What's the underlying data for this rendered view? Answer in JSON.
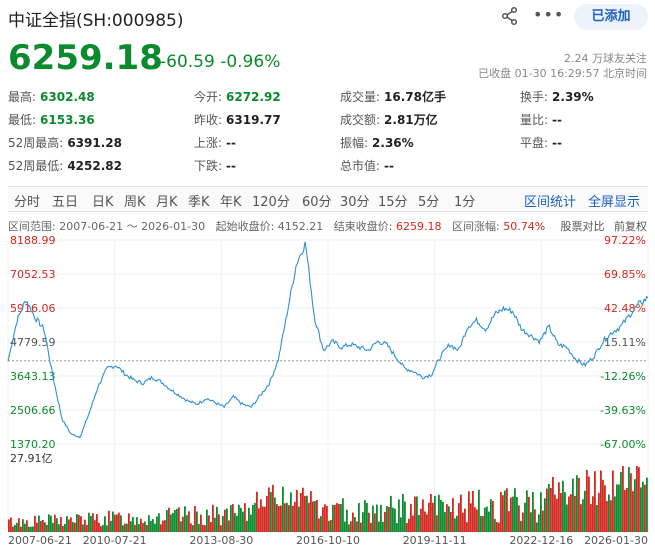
{
  "header": {
    "title": "中证全指(SH:000985)",
    "added_label": "已添加",
    "followers": "2.24 万球友关注",
    "closed_time": "已收盘 01-30 16:29:57 北京时间"
  },
  "quote": {
    "price": "6259.18",
    "change": "-60.59 -0.96%"
  },
  "stats": [
    {
      "label": "最高:",
      "value": "6302.48",
      "color": "green"
    },
    {
      "label": "今开:",
      "value": "6272.92",
      "color": "green"
    },
    {
      "label": "成交量:",
      "value": "16.78亿手",
      "color": ""
    },
    {
      "label": "换手:",
      "value": "2.39%",
      "color": ""
    },
    {
      "label": "最低:",
      "value": "6153.36",
      "color": "green"
    },
    {
      "label": "昨收:",
      "value": "6319.77",
      "color": ""
    },
    {
      "label": "成交额:",
      "value": "2.81万亿",
      "color": ""
    },
    {
      "label": "量比:",
      "value": "--",
      "color": ""
    },
    {
      "label": "52周最高:",
      "value": "6391.28",
      "color": ""
    },
    {
      "label": "上涨:",
      "value": "--",
      "color": ""
    },
    {
      "label": "振幅:",
      "value": "2.36%",
      "color": ""
    },
    {
      "label": "平盘:",
      "value": "--",
      "color": ""
    },
    {
      "label": "52周最低:",
      "value": "4252.82",
      "color": ""
    },
    {
      "label": "下跌:",
      "value": "--",
      "color": ""
    },
    {
      "label": "总市值:",
      "value": "--",
      "color": ""
    }
  ],
  "tabs": [
    "分时",
    "五日",
    "日K",
    "周K",
    "月K",
    "季K",
    "年K",
    "120分",
    "60分",
    "30分",
    "15分",
    "5分",
    "1分"
  ],
  "tabs_right": [
    "区间统计",
    "全屏显示"
  ],
  "range": {
    "label": "区间范围:",
    "value": "2007-06-21 ～ 2026-01-30",
    "start_label": "起始收盘价:",
    "start_value": "4152.21",
    "end_label": "结束收盘价:",
    "end_value": "6259.18",
    "change_label": "区间涨幅:",
    "change_value": "50.74%",
    "compare_label": "股票对比",
    "adjust_label": "前复权"
  },
  "chart_data": {
    "type": "line",
    "y_ticks_left": [
      "8188.99",
      "7052.53",
      "5916.06",
      "4779.59",
      "3643.13",
      "2506.66",
      "1370.20"
    ],
    "y_ticks_right": [
      "97.22%",
      "69.85%",
      "42.48%",
      "15.11%",
      "-12.26%",
      "-39.63%",
      "-67.00%"
    ],
    "ylim": [
      1370.2,
      8188.99
    ],
    "volume_max_label": "27.91亿",
    "x_ticks": [
      "2007-06-21",
      "2010-07-21",
      "2013-08-30",
      "2016-10-10",
      "2019-11-11",
      "2022-12-16",
      "2026-01-30"
    ],
    "base_value": 4152.21,
    "series": [
      {
        "values": [
          4152,
          5500,
          6200,
          5600,
          5200,
          3600,
          2200,
          1700,
          1600,
          2400,
          3300,
          3900,
          4000,
          3700,
          3500,
          3400,
          3600,
          3450,
          3200,
          3000,
          2800,
          2700,
          2900,
          2750,
          2600,
          2950,
          2700,
          2600,
          3000,
          3400,
          4200,
          5800,
          7400,
          8100,
          5600,
          4500,
          4800,
          4600,
          4700,
          4600,
          4500,
          4800,
          4700,
          4300,
          3900,
          3800,
          3600,
          3700,
          4300,
          4700,
          4500,
          5300,
          5500,
          5200,
          5700,
          5900,
          5800,
          5200,
          5000,
          4800,
          5300,
          4700,
          4600,
          4200,
          4000,
          4300,
          4800,
          5100,
          5300,
          5700,
          6050,
          6259
        ]
      }
    ]
  },
  "colors": {
    "up": "#d3281f",
    "down": "#0b8a2e",
    "line": "#2d8fd6",
    "link": "#1a5fbf"
  }
}
